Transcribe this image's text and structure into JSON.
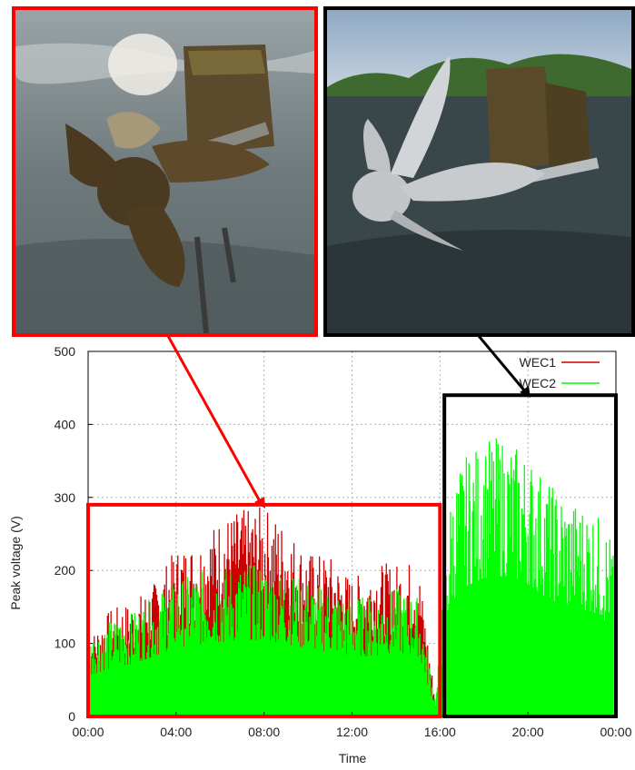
{
  "photos": {
    "fouled": {
      "description_icon": "fouled-turbine-photo",
      "frame_color": "#ff0000"
    },
    "clean": {
      "description_icon": "clean-turbine-photo",
      "frame_color": "#000000"
    }
  },
  "chart_data": {
    "type": "bar",
    "title": "",
    "xlabel": "Time",
    "ylabel": "Peak voltage (V)",
    "xlim": [
      0,
      24
    ],
    "ylim": [
      0,
      500
    ],
    "x_ticks": [
      "00:00",
      "04:00",
      "08:00",
      "12:00",
      "16:00",
      "20:00",
      "00:00"
    ],
    "y_ticks": [
      "0",
      "100",
      "200",
      "300",
      "400",
      "500"
    ],
    "grid": true,
    "legend_position": "top-right",
    "series": [
      {
        "name": "WEC1",
        "color": "#cc0000",
        "x": [
          0,
          1,
          2,
          3,
          4,
          5,
          6,
          7,
          8,
          9,
          10,
          11,
          12,
          13,
          14,
          15,
          15.8
        ],
        "values": [
          100,
          140,
          150,
          175,
          220,
          230,
          260,
          270,
          275,
          250,
          215,
          210,
          180,
          200,
          200,
          205,
          20
        ]
      },
      {
        "name": "WEC2",
        "color": "#00ff00",
        "x": [
          0,
          1,
          2,
          3,
          4,
          5,
          6,
          7,
          8,
          9,
          10,
          11,
          12,
          13,
          14,
          15,
          15.8,
          16.5,
          17,
          18,
          19,
          20,
          21,
          22,
          23,
          23.9
        ],
        "values": [
          100,
          120,
          130,
          150,
          170,
          180,
          185,
          190,
          190,
          180,
          170,
          160,
          150,
          150,
          160,
          150,
          20,
          280,
          320,
          345,
          350,
          330,
          290,
          270,
          260,
          220
        ]
      }
    ],
    "highlight_boxes": [
      {
        "label_color": "#ff0000",
        "x_range": [
          0,
          16
        ],
        "y_range": [
          0,
          290
        ]
      },
      {
        "label_color": "#000000",
        "x_range": [
          16.2,
          24
        ],
        "y_range": [
          0,
          440
        ]
      }
    ]
  }
}
